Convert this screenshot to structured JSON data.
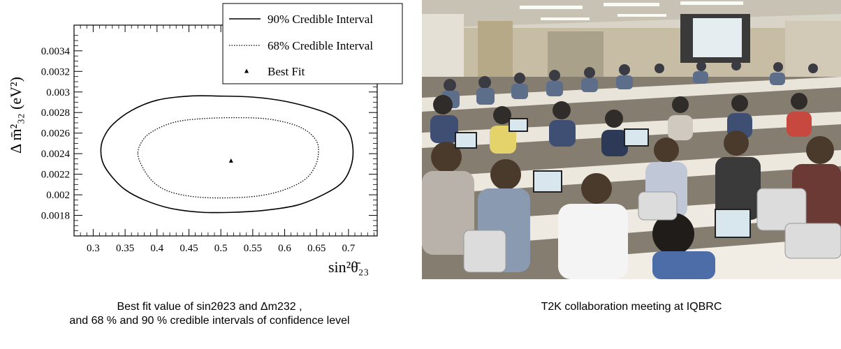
{
  "chart_data": {
    "type": "line",
    "xlabel": "sin²θ̄₂₃",
    "ylabel": "Δ m̄²₃₂ (eV²)",
    "xlim": [
      0.27,
      0.745
    ],
    "ylim": [
      0.0016,
      0.00365
    ],
    "x_ticks": [
      0.3,
      0.35,
      0.4,
      0.45,
      0.5,
      0.55,
      0.6,
      0.65,
      0.7
    ],
    "y_ticks": [
      0.0018,
      0.002,
      0.0022,
      0.0024,
      0.0026,
      0.0028,
      0.003,
      0.0032,
      0.0034
    ],
    "x_tick_labels": [
      "0.3",
      "0.35",
      "0.4",
      "0.45",
      "0.5",
      "0.55",
      "0.6",
      "0.65",
      "0.7"
    ],
    "y_tick_labels": [
      "0.0018",
      "0.002",
      "0.0022",
      "0.0024",
      "0.0026",
      "0.0028",
      "0.003",
      "0.0032",
      "0.0034"
    ],
    "legend_position": "top-right",
    "series": [
      {
        "name": "90% Credible Interval",
        "style": "solid",
        "x": [
          0.312,
          0.316,
          0.33,
          0.36,
          0.4,
          0.45,
          0.5,
          0.55,
          0.6,
          0.65,
          0.68,
          0.7,
          0.707,
          0.704,
          0.69,
          0.66,
          0.62,
          0.57,
          0.52,
          0.47,
          0.42,
          0.38,
          0.35,
          0.33,
          0.316,
          0.312
        ],
        "y": [
          0.00243,
          0.00255,
          0.00268,
          0.00282,
          0.00292,
          0.00296,
          0.00296,
          0.00295,
          0.00291,
          0.00283,
          0.00275,
          0.00262,
          0.00245,
          0.00228,
          0.00212,
          0.002,
          0.0019,
          0.00185,
          0.00183,
          0.00183,
          0.00187,
          0.00195,
          0.00205,
          0.00217,
          0.0023,
          0.00243
        ]
      },
      {
        "name": "68% Credible Interval",
        "style": "dotted",
        "x": [
          0.37,
          0.38,
          0.4,
          0.43,
          0.47,
          0.52,
          0.57,
          0.61,
          0.635,
          0.65,
          0.653,
          0.648,
          0.632,
          0.6,
          0.56,
          0.51,
          0.46,
          0.42,
          0.395,
          0.378,
          0.37
        ],
        "y": [
          0.00241,
          0.00255,
          0.00264,
          0.00271,
          0.00274,
          0.00275,
          0.00274,
          0.00269,
          0.00262,
          0.00252,
          0.00241,
          0.00228,
          0.00215,
          0.00205,
          0.00199,
          0.00197,
          0.00198,
          0.00203,
          0.00212,
          0.00226,
          0.00241
        ]
      }
    ],
    "best_fit": {
      "name": "Best Fit",
      "x": 0.516,
      "y": 0.00233
    }
  },
  "captions": {
    "chart_line1": "Best fit value of sin2θ23 and Δm232 ,",
    "chart_line2": "and 68 % and 90 % credible intervals of confidence level",
    "photo": "T2K collaboration meeting at IQBRC"
  },
  "photo": {
    "description_icon": "lecture-hall-photo",
    "colors": {
      "ceiling": "#d6d1c5",
      "wall": "#c9c0a8",
      "screen": "#e8eef0",
      "desk": "#ebe6dc",
      "floor": "#7c7466"
    }
  }
}
